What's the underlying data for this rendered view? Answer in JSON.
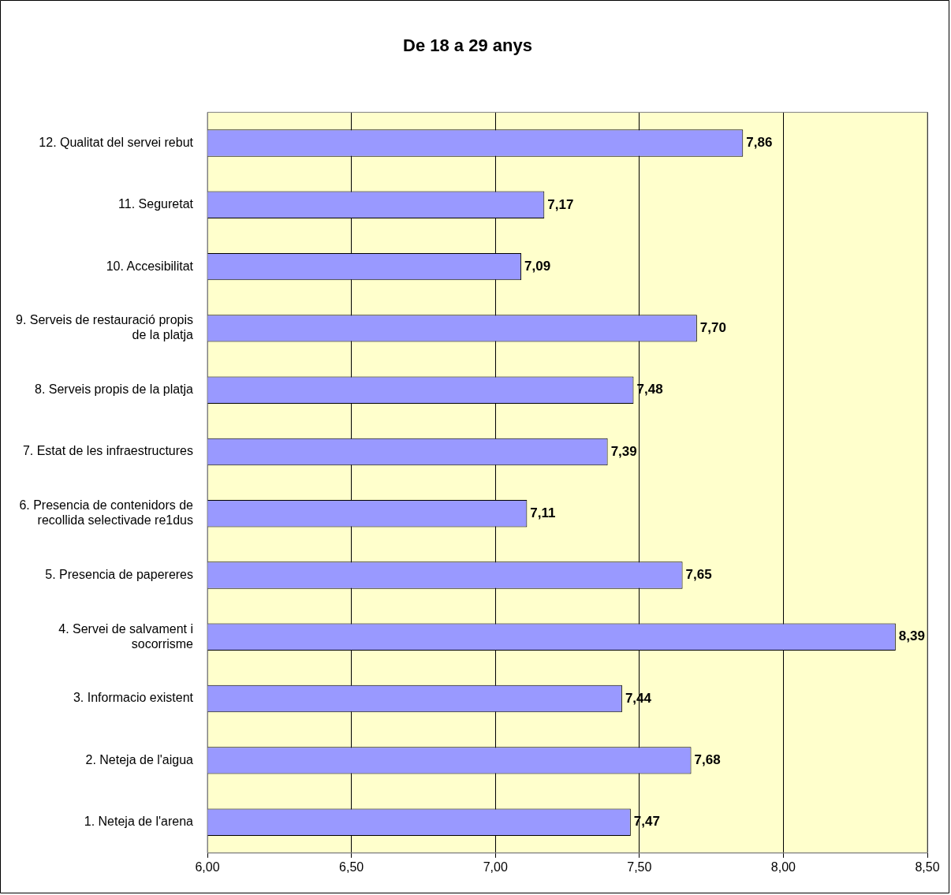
{
  "chart_data": {
    "type": "bar",
    "orientation": "horizontal",
    "title": "De 18 a 29 anys",
    "categories": [
      "12. Qualitat del servei rebut",
      "11. Seguretat",
      "10. Accesibilitat",
      "9. Serveis de restauració propis de la platja",
      "8. Serveis propis de la platja",
      "7. Estat de les infraestructures",
      "6. Presencia de contenidors de recollida selectivade re1dus",
      "5. Presencia de papereres",
      "4. Servei de salvament i socorrisme",
      "3. Informacio existent",
      "2. Neteja de l'aigua",
      "1. Neteja de l'arena"
    ],
    "values": [
      7.86,
      7.17,
      7.09,
      7.7,
      7.48,
      7.39,
      7.11,
      7.65,
      8.39,
      7.44,
      7.68,
      7.47
    ],
    "value_labels": [
      "7,86",
      "7,17",
      "7,09",
      "7,70",
      "7,48",
      "7,39",
      "7,11",
      "7,65",
      "8,39",
      "7,44",
      "7,68",
      "7,47"
    ],
    "color": "#9999ff",
    "xlim": [
      6,
      8.5
    ],
    "xticks": [
      {
        "value": 6,
        "label": "6,00"
      },
      {
        "value": 6.5,
        "label": "6,50"
      },
      {
        "value": 7,
        "label": "7,00"
      },
      {
        "value": 7.5,
        "label": "7,50"
      },
      {
        "value": 8,
        "label": "8,00"
      },
      {
        "value": 8.5,
        "label": "8,50"
      }
    ],
    "grid": "x",
    "legend": false
  }
}
